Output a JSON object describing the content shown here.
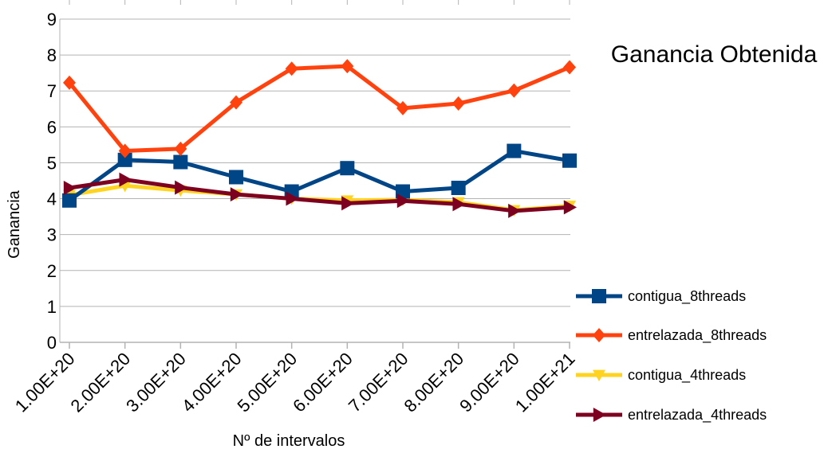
{
  "chart_data": {
    "type": "line",
    "title": "Ganancia Obtenida",
    "xlabel": "Nº de intervalos",
    "ylabel": "Ganancia",
    "categories": [
      "1.00E+20",
      "2.00E+20",
      "3.00E+20",
      "4.00E+20",
      "5.00E+20",
      "6.00E+20",
      "7.00E+20",
      "8.00E+20",
      "9.00E+20",
      "1.00E+21"
    ],
    "ylim": [
      0,
      9
    ],
    "yticks": [
      0,
      1,
      2,
      3,
      4,
      5,
      6,
      7,
      8,
      9
    ],
    "grid": "horizontal",
    "legend_position": "right",
    "series": [
      {
        "name": "contigua_8threads",
        "color": "#004586",
        "marker": "square",
        "values": [
          3.95,
          5.08,
          5.02,
          4.6,
          4.2,
          4.85,
          4.2,
          4.3,
          5.33,
          5.06
        ]
      },
      {
        "name": "entrelazada_8threads",
        "color": "#ff420e",
        "marker": "diamond",
        "values": [
          7.23,
          5.33,
          5.39,
          6.68,
          7.62,
          7.69,
          6.52,
          6.65,
          7.01,
          7.66
        ]
      },
      {
        "name": "contigua_4threads",
        "color": "#ffd320",
        "marker": "triangle-down",
        "values": [
          4.1,
          4.36,
          4.23,
          4.12,
          4.0,
          3.95,
          3.97,
          3.9,
          3.68,
          3.8
        ]
      },
      {
        "name": "entrelazada_4threads",
        "color": "#7e0021",
        "marker": "triangle-right",
        "values": [
          4.3,
          4.53,
          4.31,
          4.12,
          4.0,
          3.87,
          3.94,
          3.85,
          3.66,
          3.76
        ]
      }
    ]
  }
}
